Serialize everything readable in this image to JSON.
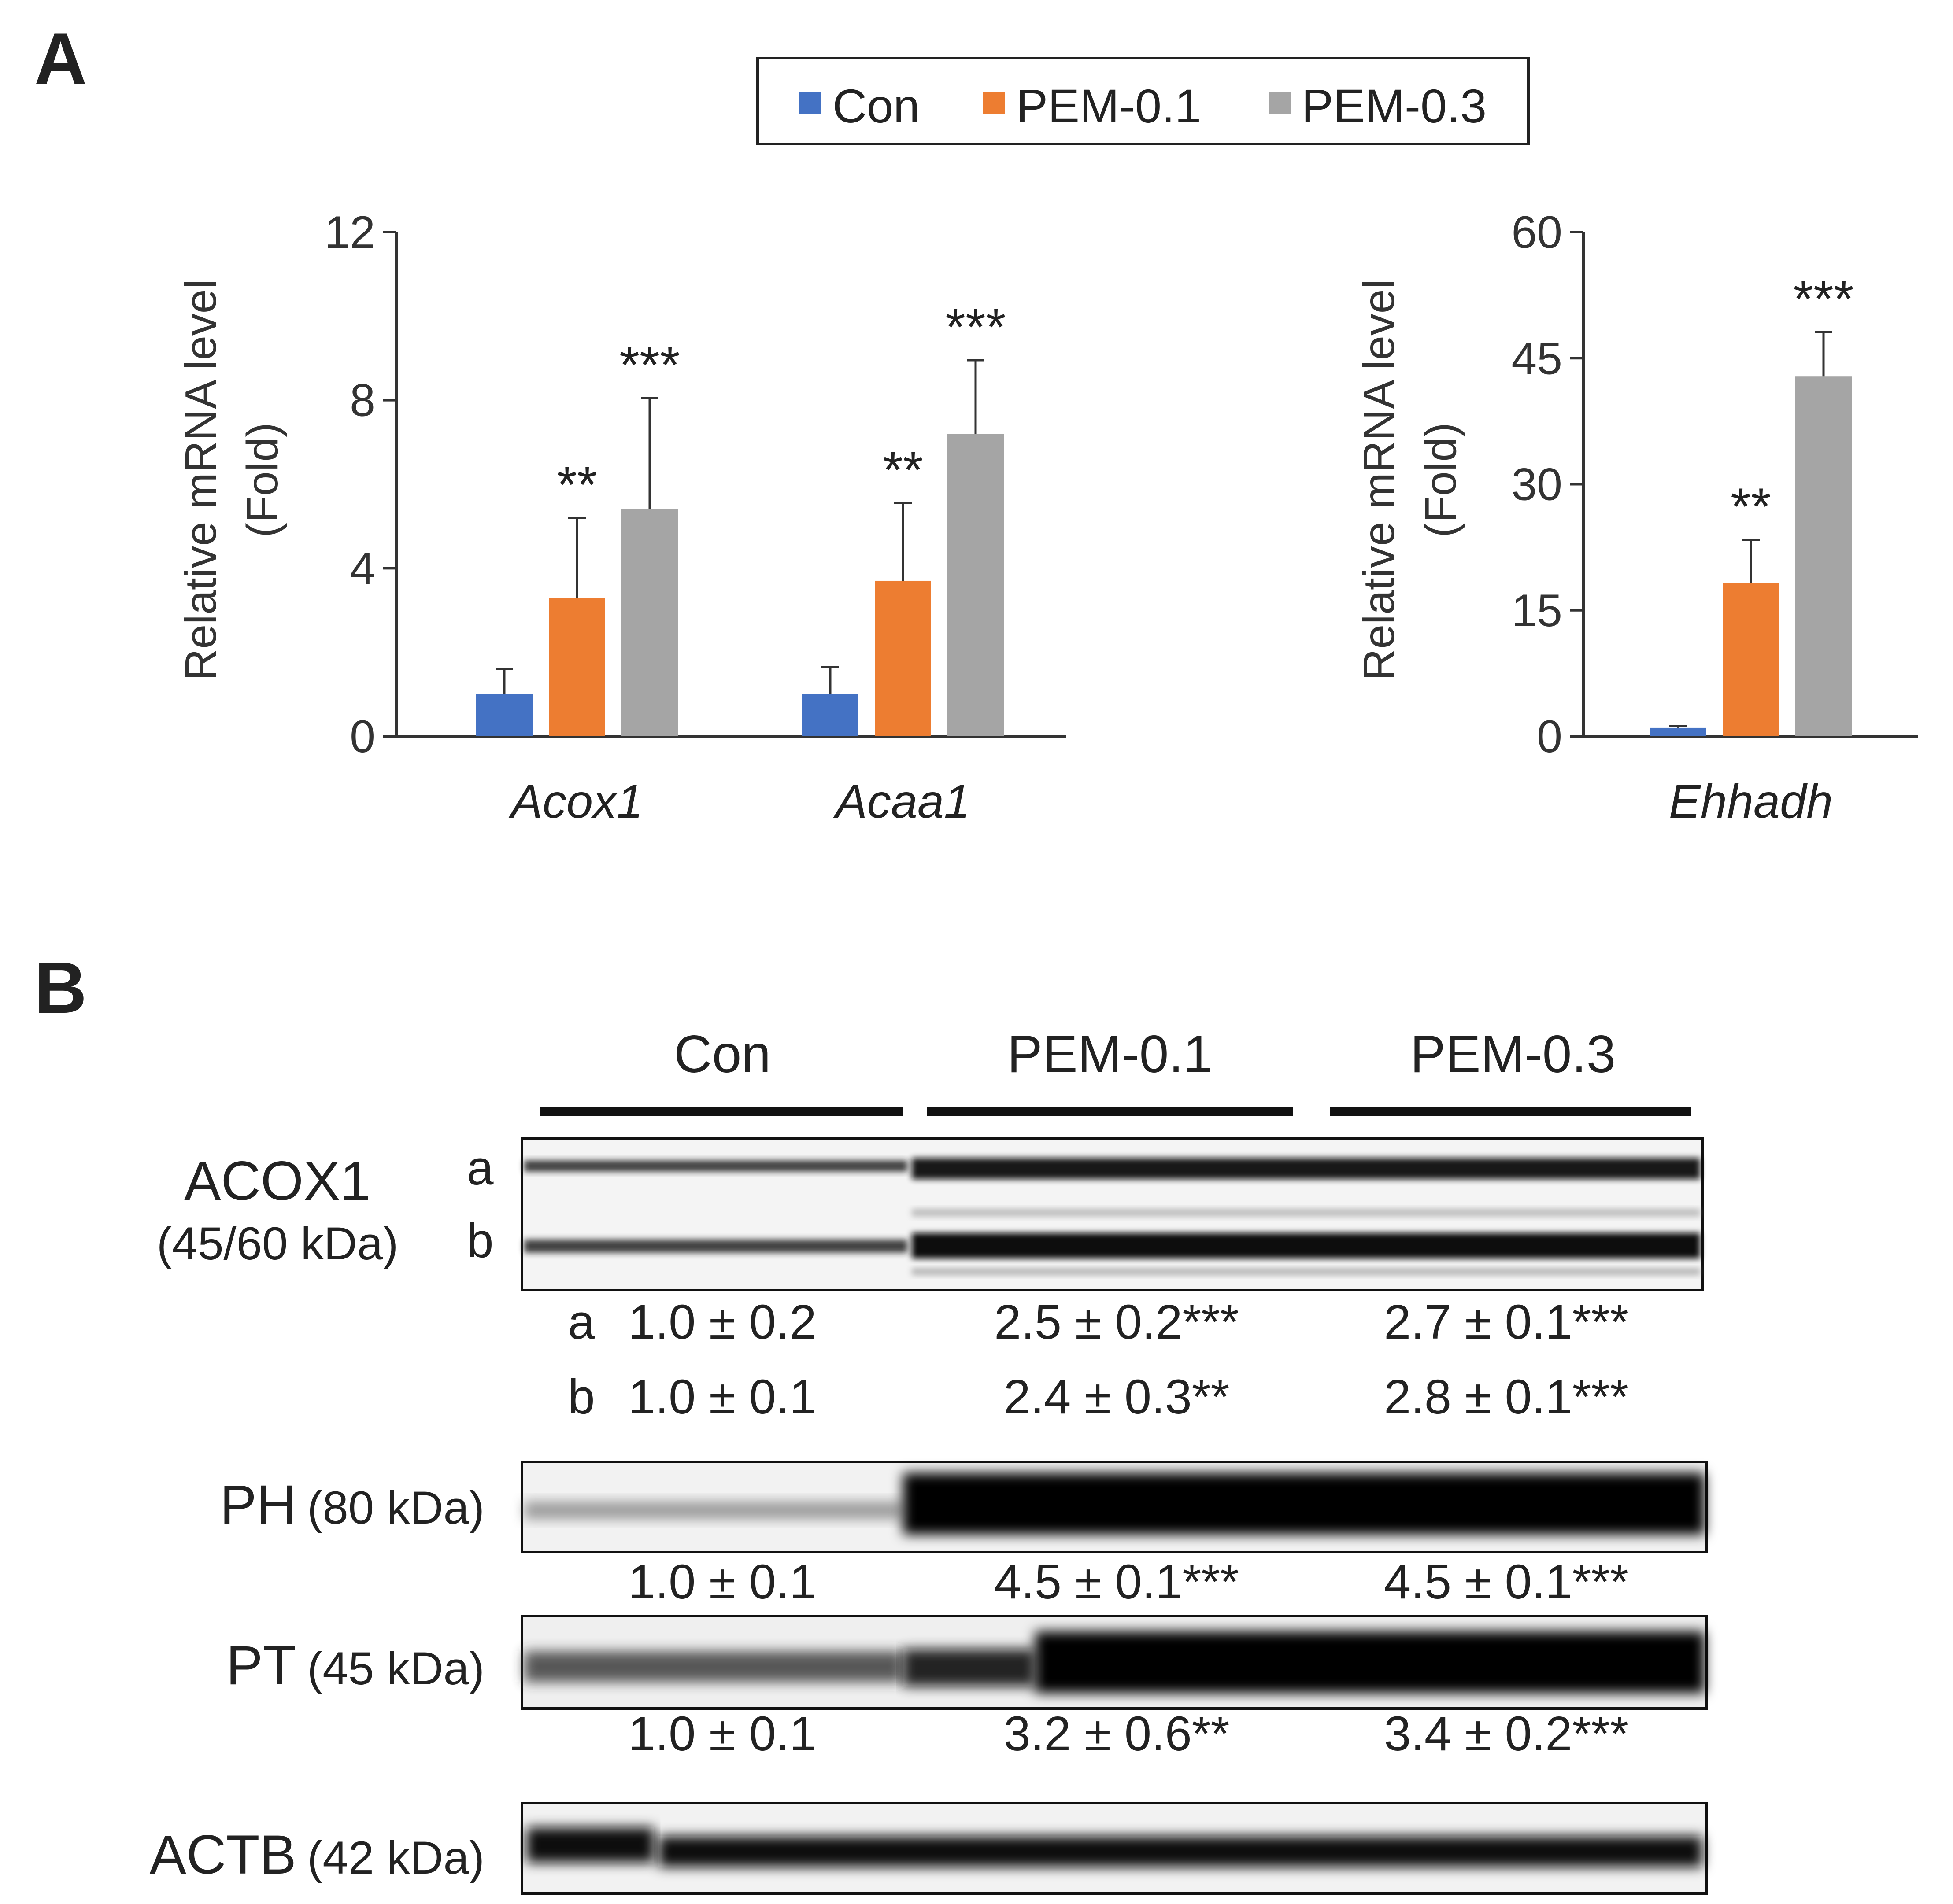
{
  "panels": {
    "a": "A",
    "b": "B"
  },
  "legend": {
    "items": [
      {
        "label": "Con",
        "color": "#4472C4"
      },
      {
        "label": "PEM-0.1",
        "color": "#ED7D31"
      },
      {
        "label": "PEM-0.3",
        "color": "#A5A5A5"
      }
    ]
  },
  "chart_data": [
    {
      "type": "bar",
      "categories": [
        "Acox1",
        "Acaa1"
      ],
      "series": [
        {
          "name": "Con",
          "values": [
            1.0,
            1.0
          ],
          "errors": [
            0.6,
            0.65
          ]
        },
        {
          "name": "PEM-0.1",
          "values": [
            3.3,
            3.7
          ],
          "errors": [
            1.9,
            1.85
          ]
        },
        {
          "name": "PEM-0.3",
          "values": [
            5.4,
            7.2
          ],
          "errors": [
            2.65,
            1.75
          ]
        }
      ],
      "significance": [
        [
          "",
          ""
        ],
        [
          "**",
          "**"
        ],
        [
          "***",
          "***"
        ]
      ],
      "ylabel": "Relative mRNA level",
      "ylabel2": "(Fold)",
      "ylim": [
        0,
        12
      ],
      "yticks": [
        0,
        4,
        8,
        12
      ],
      "ytick_labels": [
        "0",
        "4",
        "8",
        "12"
      ]
    },
    {
      "type": "bar",
      "categories": [
        "Ehhadh"
      ],
      "series": [
        {
          "name": "Con",
          "values": [
            1.0
          ],
          "errors": [
            0.2
          ]
        },
        {
          "name": "PEM-0.1",
          "values": [
            18.2
          ],
          "errors": [
            5.2
          ]
        },
        {
          "name": "PEM-0.3",
          "values": [
            42.8
          ],
          "errors": [
            5.3
          ]
        }
      ],
      "significance": [
        [
          ""
        ],
        [
          "**"
        ],
        [
          "***"
        ]
      ],
      "ylabel": "Relative mRNA level",
      "ylabel2": "(Fold)",
      "ylim": [
        0,
        60
      ],
      "yticks": [
        0,
        15,
        30,
        45,
        60
      ],
      "ytick_labels": [
        "0",
        "15",
        "30",
        "45",
        "60"
      ]
    }
  ],
  "blot": {
    "groups": [
      "Con",
      "PEM-0.1",
      "PEM-0.3"
    ],
    "acox1": {
      "name": "ACOX1",
      "size": "(45/60 kDa)",
      "band_a": "a",
      "band_b": "b",
      "quant": {
        "a": [
          "1.0 ± 0.2",
          "2.5 ± 0.2***",
          "2.7 ± 0.1***"
        ],
        "b": [
          "1.0 ± 0.1",
          "2.4 ± 0.3**",
          "2.8 ± 0.1***"
        ]
      }
    },
    "ph": {
      "name": "PH",
      "size": "(80 kDa)",
      "quant": [
        "1.0 ± 0.1",
        "4.5 ± 0.1***",
        "4.5 ± 0.1***"
      ]
    },
    "pt": {
      "name": "PT",
      "size": "(45 kDa)",
      "quant": [
        "1.0 ± 0.1",
        "3.2 ± 0.6**",
        "3.4 ± 0.2***"
      ]
    },
    "actb": {
      "name": "ACTB",
      "size": "(42 kDa)"
    }
  }
}
